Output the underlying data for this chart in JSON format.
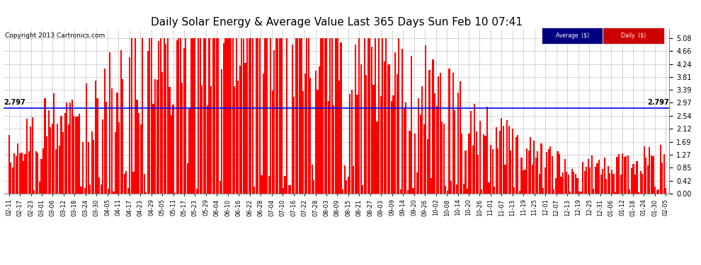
{
  "title": "Daily Solar Energy & Average Value Last 365 Days Sun Feb 10 07:41",
  "copyright": "Copyright 2013 Cartronics.com",
  "average_label": "Average  ($)",
  "daily_label": "Daily  ($)",
  "average_value": 2.797,
  "ylim": [
    0.0,
    5.38
  ],
  "yticks": [
    0.0,
    0.42,
    0.85,
    1.27,
    1.69,
    2.12,
    2.54,
    2.97,
    3.39,
    3.81,
    4.24,
    4.66,
    5.08
  ],
  "bar_color": "#ff0000",
  "average_line_color": "#0000ff",
  "background_color": "#ffffff",
  "grid_color": "#999999",
  "title_fontsize": 11,
  "avg_bg_color": "#000080",
  "daily_bg_color": "#cc0000"
}
